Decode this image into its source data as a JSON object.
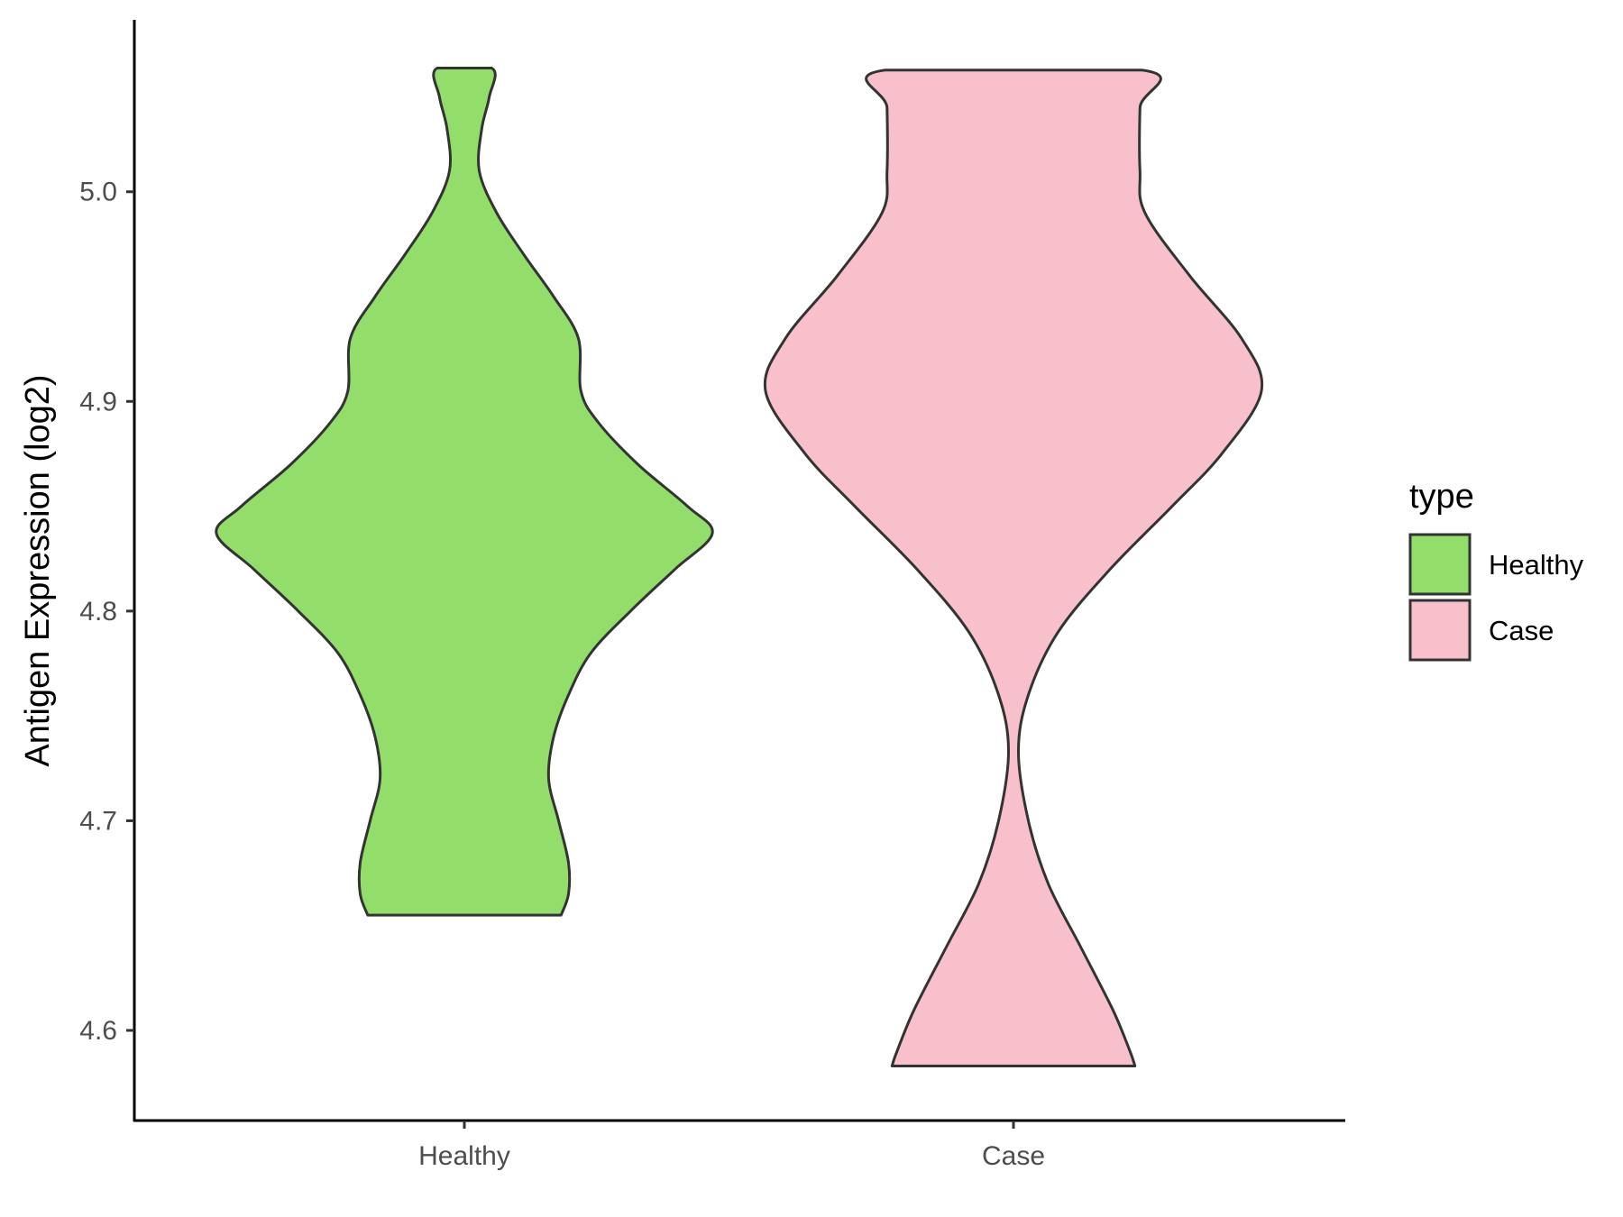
{
  "chart_data": {
    "type": "violin",
    "ylabel": "Antigen Expression (log2)",
    "xlabel": "",
    "ylim": [
      4.557,
      5.082
    ],
    "y_ticks": [
      "4.6",
      "4.7",
      "4.8",
      "4.9",
      "5.0"
    ],
    "categories": [
      "Healthy",
      "Case"
    ],
    "legend": {
      "title": "type",
      "position": "right",
      "items": [
        {
          "label": "Healthy",
          "color": "#93dd6b"
        },
        {
          "label": "Case",
          "color": "#f7c0cb"
        }
      ]
    },
    "grid": false,
    "series": [
      {
        "name": "Healthy",
        "color": "#93dd6b",
        "y_min": 4.655,
        "y_max": 5.059,
        "density_profile": [
          [
            4.655,
            0.39
          ],
          [
            4.665,
            0.42
          ],
          [
            4.68,
            0.42
          ],
          [
            4.7,
            0.38
          ],
          [
            4.72,
            0.34
          ],
          [
            4.74,
            0.36
          ],
          [
            4.76,
            0.42
          ],
          [
            4.78,
            0.51
          ],
          [
            4.8,
            0.67
          ],
          [
            4.82,
            0.85
          ],
          [
            4.837,
            1.0
          ],
          [
            4.85,
            0.9
          ],
          [
            4.87,
            0.7
          ],
          [
            4.89,
            0.54
          ],
          [
            4.905,
            0.47
          ],
          [
            4.93,
            0.46
          ],
          [
            4.95,
            0.36
          ],
          [
            4.97,
            0.24
          ],
          [
            4.99,
            0.13
          ],
          [
            5.01,
            0.06
          ],
          [
            5.03,
            0.07
          ],
          [
            5.045,
            0.1
          ],
          [
            5.059,
            0.11
          ]
        ]
      },
      {
        "name": "Case",
        "color": "#f7c0cb",
        "y_min": 4.583,
        "y_max": 5.058,
        "density_profile": [
          [
            4.583,
            0.49
          ],
          [
            4.59,
            0.47
          ],
          [
            4.61,
            0.4
          ],
          [
            4.64,
            0.27
          ],
          [
            4.67,
            0.14
          ],
          [
            4.7,
            0.06
          ],
          [
            4.733,
            0.02
          ],
          [
            4.76,
            0.06
          ],
          [
            4.79,
            0.18
          ],
          [
            4.82,
            0.39
          ],
          [
            4.85,
            0.64
          ],
          [
            4.875,
            0.84
          ],
          [
            4.905,
            1.0
          ],
          [
            4.93,
            0.92
          ],
          [
            4.96,
            0.71
          ],
          [
            4.99,
            0.53
          ],
          [
            5.01,
            0.51
          ],
          [
            5.04,
            0.51
          ],
          [
            5.058,
            0.52
          ]
        ]
      }
    ]
  }
}
